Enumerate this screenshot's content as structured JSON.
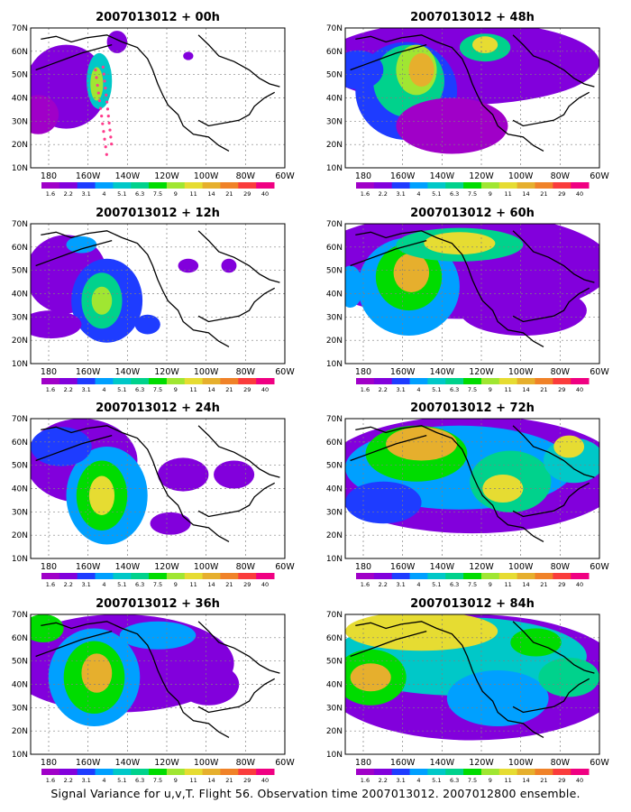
{
  "caption": "Signal Variance for u,v,T. Flight 56. Observation time 2007013012. 2007012800 ensemble.",
  "colorbar": {
    "labels": [
      "1.6",
      "2.2",
      "3.1",
      "4",
      "5.1",
      "6.3",
      "7.5",
      "9",
      "11",
      "14",
      "21",
      "29",
      "40"
    ],
    "colors": [
      "#a000c8",
      "#8200dc",
      "#1e3cff",
      "#00a0ff",
      "#00c8c8",
      "#00d28c",
      "#00dc00",
      "#a0e632",
      "#e6dc32",
      "#e6af2d",
      "#f08228",
      "#fa3c3c",
      "#f00082"
    ]
  },
  "map": {
    "lon_ticks": [
      "180",
      "160W",
      "140W",
      "120W",
      "100W",
      "80W",
      "60W"
    ],
    "lat_ticks": [
      "10N",
      "20N",
      "30N",
      "40N",
      "50N",
      "60N",
      "70N"
    ]
  },
  "chart_data": [
    {
      "type": "heatmap",
      "title": "2007013012 + 00h",
      "x_range": [
        "170E",
        "60W"
      ],
      "y_range": [
        "10N",
        "70N"
      ],
      "grid": true
    },
    {
      "type": "heatmap",
      "title": "2007013012 + 48h",
      "x_range": [
        "170E",
        "60W"
      ],
      "y_range": [
        "10N",
        "70N"
      ],
      "grid": true
    },
    {
      "type": "heatmap",
      "title": "2007013012 + 12h",
      "x_range": [
        "170E",
        "60W"
      ],
      "y_range": [
        "10N",
        "70N"
      ],
      "grid": true
    },
    {
      "type": "heatmap",
      "title": "2007013012 + 60h",
      "x_range": [
        "170E",
        "60W"
      ],
      "y_range": [
        "10N",
        "70N"
      ],
      "grid": true
    },
    {
      "type": "heatmap",
      "title": "2007013012 + 24h",
      "x_range": [
        "170E",
        "60W"
      ],
      "y_range": [
        "10N",
        "70N"
      ],
      "grid": true
    },
    {
      "type": "heatmap",
      "title": "2007013012 + 72h",
      "x_range": [
        "170E",
        "60W"
      ],
      "y_range": [
        "10N",
        "70N"
      ],
      "grid": true
    },
    {
      "type": "heatmap",
      "title": "2007013012 + 36h",
      "x_range": [
        "170E",
        "60W"
      ],
      "y_range": [
        "10N",
        "70N"
      ],
      "grid": true
    },
    {
      "type": "heatmap",
      "title": "2007013012 + 84h",
      "x_range": [
        "170E",
        "60W"
      ],
      "y_range": [
        "10N",
        "70N"
      ],
      "grid": true
    }
  ]
}
